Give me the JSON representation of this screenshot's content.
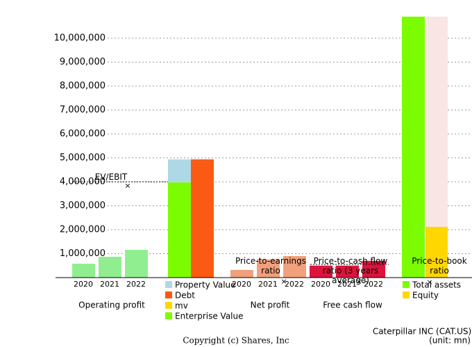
{
  "chart_data": {
    "type": "bar",
    "ylim": [
      0,
      10900000
    ],
    "yticks": [
      {
        "value": 1000000,
        "label": "1,000,000"
      },
      {
        "value": 2000000,
        "label": "2,000,000"
      },
      {
        "value": 3000000,
        "label": "3,000,000"
      },
      {
        "value": 4000000,
        "label": "4,000,000"
      },
      {
        "value": 5000000,
        "label": "5,000,000"
      },
      {
        "value": 6000000,
        "label": "6,000,000"
      },
      {
        "value": 7000000,
        "label": "7,000,000"
      },
      {
        "value": 8000000,
        "label": "8,000,000"
      },
      {
        "value": 9000000,
        "label": "9,000,000"
      },
      {
        "value": 10000000,
        "label": "10,000,000"
      }
    ],
    "grid": true,
    "operating_profit": {
      "name": "Operating profit",
      "categories": [
        "2020",
        "2021",
        "2022"
      ],
      "color": "#90ee90",
      "values": [
        580000,
        870000,
        1160000
      ]
    },
    "valuation": {
      "series": [
        {
          "name": "Property Value",
          "color": "#add8e6",
          "values": [
            960000
          ]
        },
        {
          "name": "Debt",
          "color": "#fa5a14",
          "values": [
            4940000
          ]
        },
        {
          "name": "mv",
          "color": "#ffd700",
          "values": [
            null
          ]
        },
        {
          "name": "Enterprise Value",
          "color": "#7cfc00",
          "values": [
            3980000
          ]
        }
      ],
      "ratio": {
        "label": "EV/EBIT",
        "value": 4000000,
        "marker": 3830000
      }
    },
    "net_profit": {
      "name": "Net profit",
      "categories": [
        "2020",
        "2021",
        "2022"
      ],
      "color": "#f0a07c",
      "values": [
        320000,
        760000,
        900000
      ],
      "ratio": {
        "label": "Price-to-earnings ratio",
        "value": 0,
        "marker": -170000
      }
    },
    "free_cash_flow": {
      "name": "Free cash flow",
      "categories": [
        "2020",
        "2021",
        "2022"
      ],
      "color": "#dc143c",
      "values": [
        500000,
        500000,
        700000
      ],
      "ratio": {
        "label": "Price-to-cash flow ratio (3 years average)",
        "value": 550000,
        "marker": -170000
      }
    },
    "assets": {
      "series": [
        {
          "name": "Total assets",
          "color": "#7cfc00",
          "values": [
            10900000
          ]
        },
        {
          "name": "Equity",
          "color": "#ffd700",
          "values": [
            2120000
          ]
        }
      ],
      "ratio": {
        "label": "Price-to-book ratio",
        "value": 0,
        "marker": -200000
      }
    },
    "company": "Caterpillar INC (CAT.US)",
    "unit": "(unit: mn)",
    "copyright": "Copyright (c) Shares, Inc"
  }
}
